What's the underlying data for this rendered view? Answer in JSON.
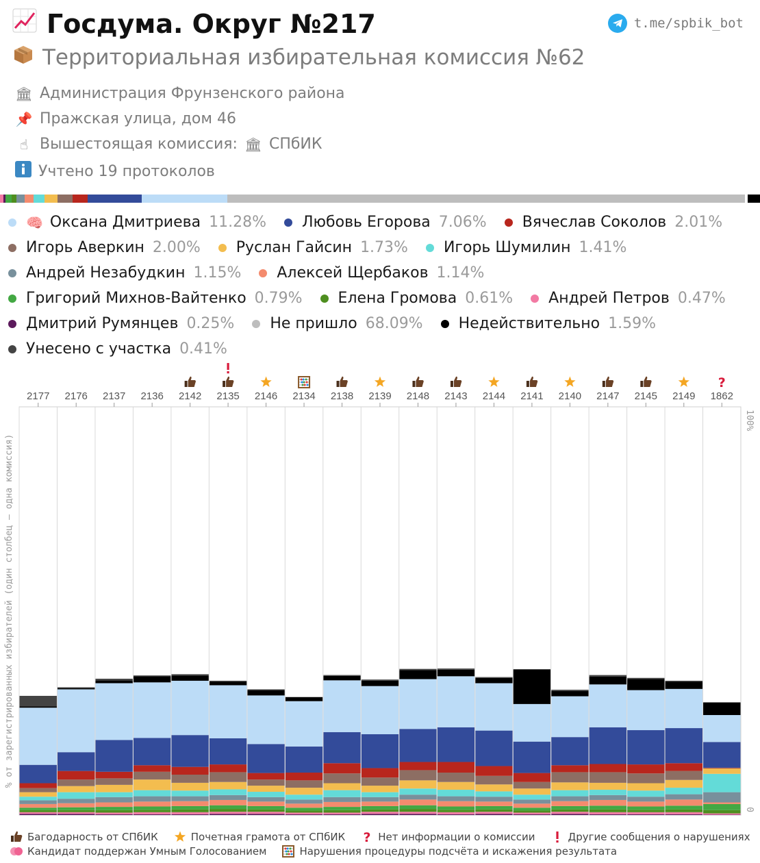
{
  "header": {
    "title": "Госдума. Округ №217",
    "title_icon": "chart-up-icon",
    "subtitle": "Территориальная избирательная комиссия №62",
    "subtitle_icon": "ballot-box-icon",
    "telegram": "t.me/spbik_bot"
  },
  "info": {
    "admin": "Администрация Фрунзенского района",
    "address": "Пражская улица, дом 46",
    "parent_label": "Вышестоящая комиссия:",
    "parent_value": "СПбИК",
    "protocols": "Учтено 19 протоколов"
  },
  "legend": [
    {
      "name": "Оксана Дмитриева",
      "pct": "11.28%",
      "color": "#bcdcf7",
      "icon": "🧠"
    },
    {
      "name": "Любовь Егорова",
      "pct": "7.06%",
      "color": "#334b9a"
    },
    {
      "name": "Вячеслав Соколов",
      "pct": "2.01%",
      "color": "#b8261d"
    },
    {
      "name": "Игорь Аверкин",
      "pct": "2.00%",
      "color": "#8d6e63"
    },
    {
      "name": "Руслан Гайсин",
      "pct": "1.73%",
      "color": "#f3bd4f"
    },
    {
      "name": "Игорь Шумилин",
      "pct": "1.41%",
      "color": "#63dbd8"
    },
    {
      "name": "Андрей Незабудкин",
      "pct": "1.15%",
      "color": "#78909c"
    },
    {
      "name": "Алексей Щербаков",
      "pct": "1.14%",
      "color": "#f48b6e"
    },
    {
      "name": "Григорий Михнов-Вайтенко",
      "pct": "0.79%",
      "color": "#43a843"
    },
    {
      "name": "Елена Громова",
      "pct": "0.61%",
      "color": "#4e8e1f"
    },
    {
      "name": "Андрей Петров",
      "pct": "0.47%",
      "color": "#f27aa3"
    },
    {
      "name": "Дмитрий Румянцев",
      "pct": "0.25%",
      "color": "#5c1a5c"
    },
    {
      "name": "Не пришло",
      "pct": "68.09%",
      "color": "#bdbdbd"
    },
    {
      "name": "Недействительно",
      "pct": "1.59%",
      "color": "#000000"
    },
    {
      "name": "Унесено с участка",
      "pct": "0.41%",
      "color": "#444444"
    }
  ],
  "chart_data": {
    "type": "bar",
    "stacked": true,
    "ylabel": "% от зарегистрированных избирателей (один столбец — одна комиссия)",
    "ylim": [
      0,
      100
    ],
    "y_ticks": [
      "0",
      "100%"
    ],
    "categories": [
      "2177",
      "2176",
      "2137",
      "2136",
      "2142",
      "2135",
      "2146",
      "2134",
      "2138",
      "2139",
      "2148",
      "2143",
      "2144",
      "2141",
      "2140",
      "2147",
      "2145",
      "2149",
      "1862"
    ],
    "category_icons": [
      "",
      "",
      "",
      "",
      "thumb",
      "thumb",
      "star",
      "abacus",
      "thumb",
      "star",
      "thumb",
      "thumb",
      "star",
      "thumb",
      "star",
      "thumb",
      "thumb",
      "star",
      "question"
    ],
    "category_icons2": [
      "",
      "",
      "",
      "",
      "",
      "exclaim",
      "",
      "",
      "",
      "",
      "",
      "",
      "",
      "",
      "",
      "",
      "",
      "",
      ""
    ],
    "series": [
      {
        "name": "Дмитрий Румянцев",
        "color": "#5c1a5c",
        "values": [
          0.3,
          0.3,
          0.2,
          0.2,
          0.2,
          0.3,
          0.3,
          0.2,
          0.2,
          0.3,
          0.3,
          0.2,
          0.3,
          0.2,
          0.3,
          0.2,
          0.2,
          0.2,
          0.1
        ]
      },
      {
        "name": "Андрей Петров",
        "color": "#f27aa3",
        "values": [
          0.4,
          0.4,
          0.4,
          0.5,
          0.5,
          0.5,
          0.5,
          0.4,
          0.4,
          0.5,
          0.5,
          0.5,
          0.5,
          0.4,
          0.5,
          0.5,
          0.5,
          0.5,
          0.3
        ]
      },
      {
        "name": "Елена Громова",
        "color": "#4e8e1f",
        "values": [
          0.5,
          0.5,
          0.6,
          0.6,
          0.7,
          0.7,
          0.6,
          0.5,
          0.6,
          0.6,
          0.7,
          0.6,
          0.6,
          0.5,
          0.6,
          0.7,
          0.6,
          0.7,
          0.8
        ]
      },
      {
        "name": "Григорий Михнов-Вайтенко",
        "color": "#43a843",
        "values": [
          0.6,
          0.7,
          0.8,
          0.8,
          0.8,
          0.9,
          0.8,
          0.7,
          0.8,
          0.8,
          0.9,
          0.8,
          0.8,
          0.7,
          0.8,
          0.9,
          0.8,
          0.9,
          1.5
        ]
      },
      {
        "name": "Алексей Щербаков",
        "color": "#f48b6e",
        "values": [
          0.9,
          1.0,
          1.1,
          1.2,
          1.2,
          1.3,
          1.1,
          1.0,
          1.2,
          1.1,
          1.4,
          1.3,
          1.1,
          1.0,
          1.2,
          1.4,
          1.2,
          1.5,
          0.4
        ]
      },
      {
        "name": "Андрей Незабудкин",
        "color": "#78909c",
        "values": [
          0.9,
          1.1,
          1.3,
          1.3,
          1.2,
          1.2,
          1.1,
          1.0,
          1.2,
          1.1,
          1.2,
          1.2,
          1.2,
          1.0,
          1.2,
          1.2,
          1.2,
          1.3,
          2.5
        ]
      },
      {
        "name": "Игорь Шумилин",
        "color": "#63dbd8",
        "values": [
          0.9,
          1.6,
          1.2,
          1.5,
          1.4,
          1.4,
          1.3,
          1.2,
          1.7,
          1.2,
          1.5,
          1.6,
          1.3,
          1.2,
          1.5,
          1.3,
          1.5,
          1.6,
          4.5
        ]
      },
      {
        "name": "Руслан Гайсин",
        "color": "#f3bd4f",
        "values": [
          1.1,
          1.5,
          1.8,
          2.6,
          1.9,
          1.8,
          1.5,
          1.7,
          1.7,
          1.6,
          2.0,
          1.9,
          1.7,
          1.5,
          1.9,
          1.7,
          1.8,
          1.9,
          1.3
        ]
      },
      {
        "name": "Игорь Аверкин",
        "color": "#8d6e63",
        "values": [
          1.0,
          1.6,
          1.6,
          1.9,
          2.0,
          2.4,
          1.5,
          1.8,
          2.4,
          2.0,
          2.5,
          2.3,
          2.1,
          1.6,
          2.5,
          2.6,
          2.4,
          2.2,
          0.1
        ]
      },
      {
        "name": "Вячеслав Соколов",
        "color": "#b8261d",
        "values": [
          1.2,
          2.1,
          1.6,
          1.6,
          1.9,
          1.9,
          1.6,
          1.9,
          2.5,
          2.3,
          2.0,
          2.6,
          2.4,
          2.2,
          1.7,
          2.0,
          2.2,
          1.9,
          0.1
        ]
      },
      {
        "name": "Любовь Егорова",
        "color": "#334b9a",
        "values": [
          4.5,
          4.6,
          7.8,
          6.7,
          7.8,
          6.4,
          7.1,
          6.4,
          7.6,
          8.3,
          8.1,
          8.5,
          8.7,
          7.7,
          6.9,
          9.0,
          8.4,
          8.6,
          6.3
        ]
      },
      {
        "name": "Оксана Дмитриева",
        "color": "#bcdcf7",
        "values": [
          14.0,
          15.4,
          13.9,
          13.6,
          13.3,
          13.0,
          11.9,
          11.1,
          12.7,
          11.8,
          12.2,
          12.5,
          11.6,
          9.2,
          10.0,
          10.5,
          9.8,
          9.6,
          6.6
        ]
      },
      {
        "name": "Недействительно",
        "color": "#000000",
        "values": [
          0.3,
          0.3,
          0.7,
          1.5,
          1.3,
          0.9,
          1.3,
          1.0,
          1.1,
          1.3,
          2.2,
          1.6,
          1.3,
          8.5,
          1.3,
          1.9,
          2.7,
          1.8,
          3.1
        ]
      },
      {
        "name": "Унесено с участка",
        "color": "#444444",
        "values": [
          2.6,
          0.2,
          0.4,
          0.2,
          0.3,
          0.2,
          0.2,
          0.0,
          0.2,
          0.3,
          0.3,
          0.3,
          0.2,
          0.0,
          0.3,
          0.4,
          0.3,
          0.2,
          0.0
        ]
      }
    ],
    "background_series": "Не пришло"
  },
  "share_bar": [
    {
      "color": "#f27aa3",
      "pct": 0.47
    },
    {
      "color": "#5c1a5c",
      "pct": 0.25
    },
    {
      "color": "#43a843",
      "pct": 0.79
    },
    {
      "color": "#4e8e1f",
      "pct": 0.61
    },
    {
      "color": "#78909c",
      "pct": 1.15
    },
    {
      "color": "#f48b6e",
      "pct": 1.14
    },
    {
      "color": "#63dbd8",
      "pct": 1.41
    },
    {
      "color": "#f3bd4f",
      "pct": 1.73
    },
    {
      "color": "#8d6e63",
      "pct": 2.0
    },
    {
      "color": "#b8261d",
      "pct": 2.01
    },
    {
      "color": "#334b9a",
      "pct": 7.06
    },
    {
      "color": "#bcdcf7",
      "pct": 11.28
    },
    {
      "color": "#bdbdbd",
      "pct": 68.09
    },
    {
      "color": "#ffffff",
      "pct": 0.41
    },
    {
      "color": "#000000",
      "pct": 1.59
    }
  ],
  "footer": [
    [
      {
        "icon": "thumb",
        "text": "Багодарность от СПбИК"
      },
      {
        "icon": "star",
        "text": "Почетная грамота от СПбИК"
      },
      {
        "icon": "question",
        "text": "Нет информации о комиссии"
      },
      {
        "icon": "exclaim",
        "text": "Другие сообщения о нарушениях"
      }
    ],
    [
      {
        "icon": "brain",
        "text": "Кандидат поддержан Умным Голосованием"
      },
      {
        "icon": "abacus",
        "text": "Нарушения процедуры подсчёта и искажения результата"
      }
    ]
  ]
}
